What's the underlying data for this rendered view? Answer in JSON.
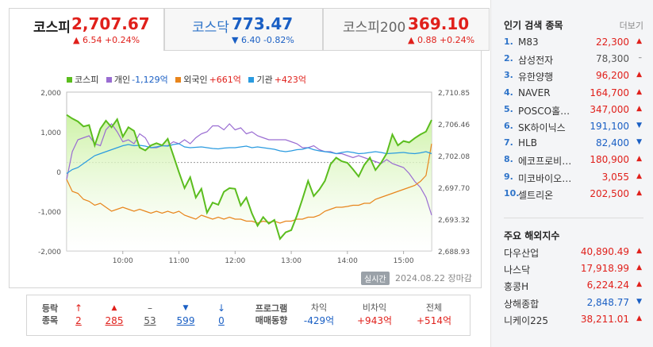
{
  "tabs": [
    {
      "name": "코스피",
      "value": "2,707.67",
      "change": "▲ 6.54 +0.24%",
      "dir": "up"
    },
    {
      "name": "코스닥",
      "value": "773.47",
      "change": "▼ 6.40 -0.82%",
      "dir": "down"
    },
    {
      "name": "코스피200",
      "value": "369.10",
      "change": "▲ 0.88 +0.24%",
      "dir": "up"
    }
  ],
  "legend": {
    "kospi": "코스피",
    "individual": "개인",
    "individual_val": "-1,129억",
    "foreign": "외국인",
    "foreign_val": "+661억",
    "institution": "기관",
    "institution_val": "+423억"
  },
  "colors": {
    "kospi": "#5bbd1e",
    "kospi_fill": "#cdf2a6",
    "individual": "#9a6dd2",
    "foreign": "#e8851c",
    "institution": "#2a9be0",
    "up": "#e0201b",
    "down": "#1a5fc4"
  },
  "chart_data": {
    "type": "line",
    "x_ticks": [
      "10:00",
      "11:00",
      "12:00",
      "13:00",
      "14:00",
      "15:00"
    ],
    "left_axis": {
      "ticks": [
        "2,000",
        "1,000",
        "0",
        "-1,000",
        "-2,000"
      ],
      "ylim": [
        -2000,
        2000
      ],
      "unit": "억"
    },
    "right_axis": {
      "ticks": [
        "2,710.85",
        "2,706.46",
        "2,702.08",
        "2,697.70",
        "2,693.32",
        "2,688.93"
      ],
      "ylim": [
        2688.93,
        2710.85
      ]
    },
    "x": [
      9.0,
      9.1,
      9.2,
      9.3,
      9.4,
      9.5,
      9.6,
      9.7,
      9.8,
      9.9,
      10.0,
      10.1,
      10.2,
      10.3,
      10.4,
      10.5,
      10.6,
      10.7,
      10.8,
      10.9,
      11.0,
      11.1,
      11.2,
      11.3,
      11.4,
      11.5,
      11.6,
      11.7,
      11.8,
      11.9,
      12.0,
      12.1,
      12.2,
      12.3,
      12.4,
      12.5,
      12.6,
      12.7,
      12.8,
      12.9,
      13.0,
      13.1,
      13.2,
      13.3,
      13.4,
      13.5,
      13.6,
      13.7,
      13.8,
      13.9,
      14.0,
      14.1,
      14.2,
      14.3,
      14.4,
      14.5,
      14.6,
      14.7,
      14.8,
      14.9,
      15.0,
      15.1,
      15.2,
      15.3,
      15.4,
      15.5
    ],
    "series": [
      {
        "name": "코스피",
        "axis": "right",
        "values": [
          2707.7,
          2707.2,
          2706.8,
          2706.1,
          2706.3,
          2703.5,
          2705.8,
          2706.9,
          2706.0,
          2707.1,
          2704.7,
          2706.0,
          2705.5,
          2703.2,
          2702.8,
          2703.5,
          2703.8,
          2703.5,
          2704.4,
          2702.1,
          2699.8,
          2697.6,
          2699.1,
          2696.3,
          2697.5,
          2694.2,
          2695.6,
          2695.3,
          2697.1,
          2697.6,
          2697.5,
          2695.2,
          2696.3,
          2694.1,
          2692.4,
          2693.6,
          2692.7,
          2693.2,
          2690.6,
          2691.5,
          2691.8,
          2693.8,
          2696.1,
          2698.6,
          2696.5,
          2697.4,
          2698.6,
          2700.9,
          2701.8,
          2701.3,
          2701.1,
          2700.2,
          2699.2,
          2700.8,
          2701.8,
          2700.1,
          2701.1,
          2702.4,
          2705.0,
          2703.5,
          2704.1,
          2703.9,
          2704.5,
          2705.0,
          2705.4,
          2707.0
        ]
      },
      {
        "name": "개인",
        "axis": "left",
        "values": [
          -200,
          500,
          800,
          850,
          900,
          700,
          650,
          1050,
          1200,
          1000,
          750,
          800,
          700,
          950,
          850,
          600,
          600,
          650,
          650,
          750,
          700,
          800,
          700,
          850,
          950,
          1000,
          1150,
          1150,
          1050,
          1200,
          1050,
          1100,
          950,
          1000,
          900,
          850,
          800,
          800,
          800,
          800,
          750,
          700,
          600,
          600,
          650,
          550,
          500,
          500,
          450,
          450,
          400,
          350,
          400,
          350,
          300,
          250,
          200,
          300,
          200,
          150,
          100,
          -50,
          -250,
          -400,
          -650,
          -1100
        ]
      },
      {
        "name": "외국인",
        "axis": "left",
        "values": [
          -200,
          -500,
          -550,
          -700,
          -750,
          -850,
          -800,
          -900,
          -1000,
          -950,
          -900,
          -950,
          -1000,
          -950,
          -1000,
          -1050,
          -1000,
          -1050,
          -1000,
          -1050,
          -1000,
          -1100,
          -1150,
          -1200,
          -1100,
          -1150,
          -1200,
          -1150,
          -1200,
          -1150,
          -1200,
          -1200,
          -1250,
          -1250,
          -1300,
          -1250,
          -1280,
          -1250,
          -1300,
          -1250,
          -1250,
          -1200,
          -1200,
          -1150,
          -1150,
          -1100,
          -1000,
          -950,
          -900,
          -900,
          -880,
          -850,
          -850,
          -800,
          -800,
          -700,
          -650,
          -600,
          -550,
          -500,
          -450,
          -400,
          -350,
          -250,
          -100,
          700
        ]
      },
      {
        "name": "기관",
        "axis": "left",
        "values": [
          -50,
          50,
          100,
          200,
          300,
          400,
          450,
          500,
          550,
          600,
          650,
          680,
          650,
          660,
          640,
          600,
          620,
          650,
          640,
          680,
          700,
          620,
          600,
          610,
          620,
          600,
          580,
          570,
          590,
          600,
          600,
          620,
          640,
          600,
          620,
          600,
          580,
          560,
          520,
          500,
          520,
          550,
          560,
          600,
          550,
          520,
          500,
          480,
          450,
          480,
          500,
          480,
          450,
          460,
          480,
          500,
          480,
          450,
          460,
          470,
          480,
          460,
          450,
          470,
          500,
          450
        ]
      }
    ]
  },
  "timestamp": {
    "badge": "실시간",
    "text": "2024.08.22 장마감"
  },
  "breadth": {
    "label": "등락\n종목",
    "items": [
      {
        "icon": "↑",
        "count": "2",
        "dir": "up"
      },
      {
        "icon": "▲",
        "count": "285",
        "dir": "up"
      },
      {
        "icon": "–",
        "count": "53",
        "dir": "flat"
      },
      {
        "icon": "▼",
        "count": "599",
        "dir": "down"
      },
      {
        "icon": "↓",
        "count": "0",
        "dir": "down"
      }
    ]
  },
  "program": {
    "label": "프로그램\n매매동향",
    "items": [
      {
        "header": "차익",
        "value": "-429억",
        "dir": "down"
      },
      {
        "header": "비차익",
        "value": "+943억",
        "dir": "up"
      },
      {
        "header": "전체",
        "value": "+514억",
        "dir": "up"
      }
    ]
  },
  "popular": {
    "title": "인기 검색 종목",
    "more": "더보기",
    "items": [
      {
        "rank": "1.",
        "name": "M83",
        "price": "22,300",
        "dir": "up"
      },
      {
        "rank": "2.",
        "name": "삼성전자",
        "price": "78,300",
        "dir": "flat"
      },
      {
        "rank": "3.",
        "name": "유한양행",
        "price": "96,200",
        "dir": "up"
      },
      {
        "rank": "4.",
        "name": "NAVER",
        "price": "164,700",
        "dir": "up"
      },
      {
        "rank": "5.",
        "name": "POSCO홀…",
        "price": "347,000",
        "dir": "up"
      },
      {
        "rank": "6.",
        "name": "SK하이닉스",
        "price": "191,100",
        "dir": "down"
      },
      {
        "rank": "7.",
        "name": "HLB",
        "price": "82,400",
        "dir": "down"
      },
      {
        "rank": "8.",
        "name": "에코프로비…",
        "price": "180,900",
        "dir": "up"
      },
      {
        "rank": "9.",
        "name": "미코바이오…",
        "price": "3,055",
        "dir": "up"
      },
      {
        "rank": "10.",
        "name": "셀트리온",
        "price": "202,500",
        "dir": "up"
      }
    ]
  },
  "global": {
    "title": "주요 해외지수",
    "items": [
      {
        "name": "다우산업",
        "price": "40,890.49",
        "dir": "up"
      },
      {
        "name": "나스닥",
        "price": "17,918.99",
        "dir": "up"
      },
      {
        "name": "홍콩H",
        "price": "6,224.24",
        "dir": "up"
      },
      {
        "name": "상해종합",
        "price": "2,848.77",
        "dir": "down"
      },
      {
        "name": "니케이225",
        "price": "38,211.01",
        "dir": "up"
      }
    ]
  }
}
